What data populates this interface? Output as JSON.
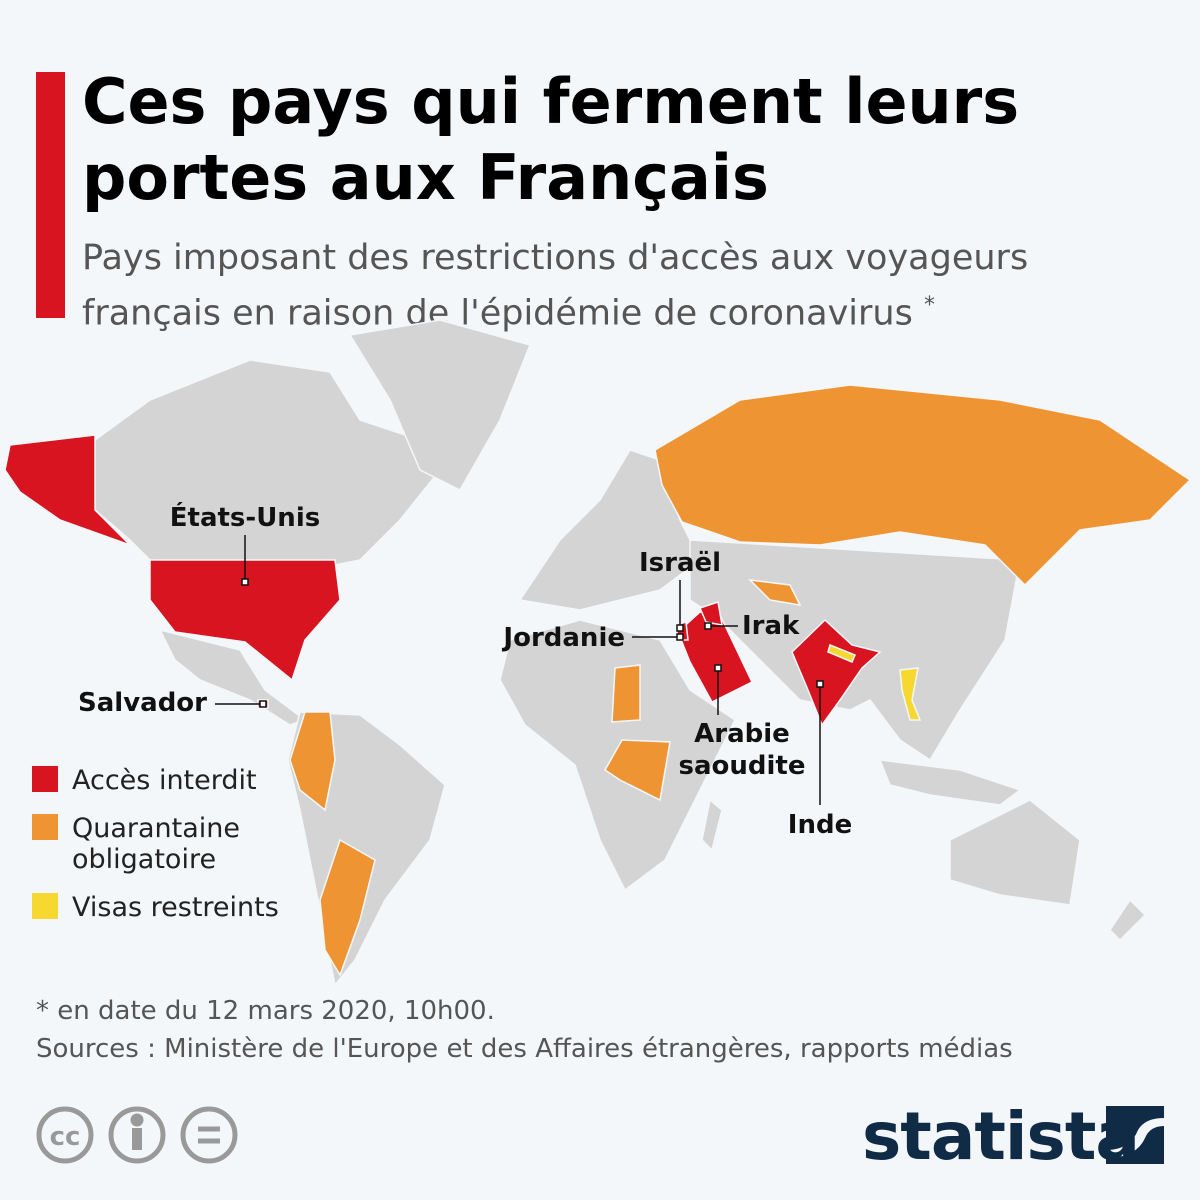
{
  "header": {
    "title_lines": [
      "Ces pays qui ferment leurs",
      "portes aux Français"
    ],
    "subtitle_lines": [
      "Pays imposant des restrictions d'accès aux voyageurs",
      "français en raison de l'épidémie de coronavirus"
    ],
    "subtitle_mark": "*"
  },
  "map": {
    "labels": [
      "États-Unis",
      "Salvador",
      "Israël",
      "Jordanie",
      "Irak",
      [
        "Arabie",
        "saoudite"
      ],
      "Inde"
    ]
  },
  "legend": [
    {
      "lines": [
        "Accès interdit"
      ],
      "color": "#d7141f"
    },
    {
      "lines": [
        "Quarantaine",
        "obligatoire"
      ],
      "color": "#ef9433"
    },
    {
      "lines": [
        "Visas restreints"
      ],
      "color": "#f6d830"
    }
  ],
  "footer": {
    "note": "* en date du 12 mars 2020, 10h00.",
    "sources": "Sources : Ministère de l'Europe et des Affaires étrangères, rapports médias",
    "logo": "statista"
  }
}
